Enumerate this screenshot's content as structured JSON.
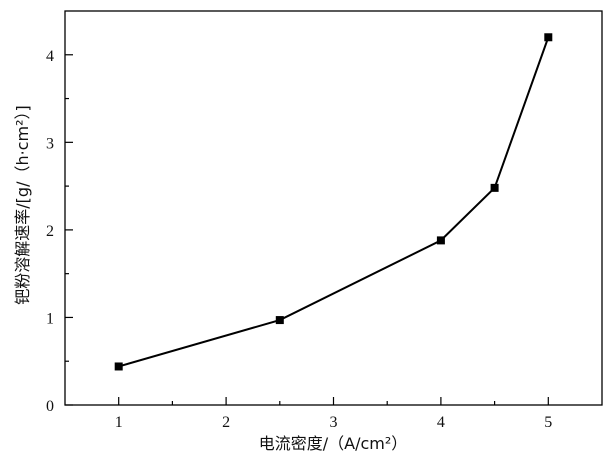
{
  "chart_data": {
    "type": "line",
    "title": "",
    "xlabel": "电流密度/（A/cm²）",
    "ylabel": "钯粉溶解速率/[g/（h·cm²）]",
    "xlim": [
      0.5,
      5.5
    ],
    "ylim": [
      0,
      4.5
    ],
    "xticks": [
      "1",
      "2",
      "3",
      "4",
      "5"
    ],
    "yticks": [
      "0",
      "1",
      "2",
      "3",
      "4"
    ],
    "grid": false,
    "legend": "none",
    "marker": "square",
    "line_color": "#000000",
    "series": [
      {
        "x": [
          1,
          2.5,
          4,
          4.5,
          5
        ],
        "y": [
          0.44,
          0.97,
          1.88,
          2.48,
          4.2
        ]
      }
    ]
  }
}
